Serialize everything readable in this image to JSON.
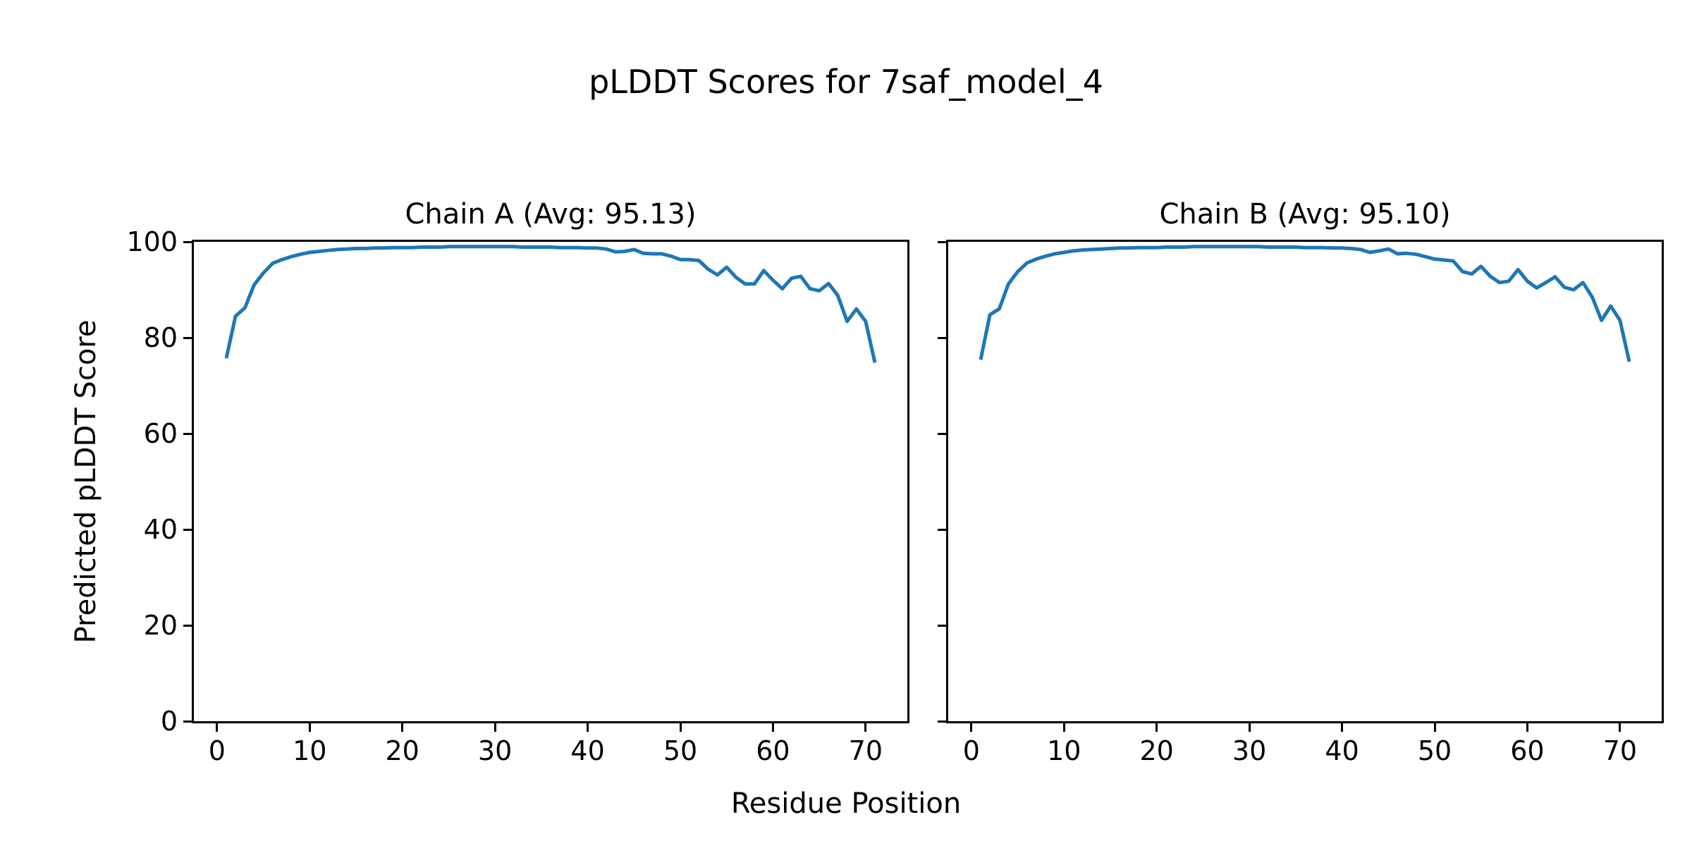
{
  "figure": {
    "suptitle": "pLDDT Scores for 7saf_model_4",
    "xlabel": "Residue Position",
    "ylabel": "Predicted pLDDT Score",
    "background_color": "#ffffff",
    "text_color": "#000000",
    "spine_color": "#000000"
  },
  "chart_data": {
    "type": "line",
    "line_color": "#1f77b4",
    "xlim": [
      -2.5,
      74.5
    ],
    "ylim": [
      0,
      100
    ],
    "x_ticks": [
      0,
      10,
      20,
      30,
      40,
      50,
      60,
      70
    ],
    "y_ticks": [
      0,
      20,
      40,
      60,
      80,
      100
    ],
    "grid": false,
    "legend": false,
    "xlabel": "Residue Position",
    "ylabel": "Predicted pLDDT Score",
    "x": [
      1,
      2,
      3,
      4,
      5,
      6,
      7,
      8,
      9,
      10,
      11,
      12,
      13,
      14,
      15,
      16,
      17,
      18,
      19,
      20,
      21,
      22,
      23,
      24,
      25,
      26,
      27,
      28,
      29,
      30,
      31,
      32,
      33,
      34,
      35,
      36,
      37,
      38,
      39,
      40,
      41,
      42,
      43,
      44,
      45,
      46,
      47,
      48,
      49,
      50,
      51,
      52,
      53,
      54,
      55,
      56,
      57,
      58,
      59,
      60,
      61,
      62,
      63,
      64,
      65,
      66,
      67,
      68,
      69,
      70,
      71
    ],
    "series": [
      {
        "name": "Chain A",
        "title": "Chain A (Avg: 95.13)",
        "avg": 95.13,
        "values": [
          75.7,
          84.5,
          86.2,
          91.0,
          93.5,
          95.5,
          96.3,
          96.9,
          97.4,
          97.8,
          98.0,
          98.2,
          98.4,
          98.5,
          98.6,
          98.6,
          98.7,
          98.7,
          98.8,
          98.8,
          98.8,
          98.9,
          98.9,
          98.9,
          99.0,
          99.0,
          99.0,
          99.0,
          99.0,
          99.0,
          99.0,
          99.0,
          98.9,
          98.9,
          98.9,
          98.9,
          98.8,
          98.8,
          98.8,
          98.7,
          98.7,
          98.5,
          97.9,
          98.0,
          98.4,
          97.6,
          97.5,
          97.5,
          97.0,
          96.3,
          96.3,
          96.1,
          94.3,
          93.1,
          94.7,
          92.6,
          91.2,
          91.2,
          94.0,
          92.0,
          90.2,
          92.4,
          92.8,
          90.2,
          89.8,
          91.3,
          88.8,
          83.4,
          86.0,
          83.4,
          74.8
        ]
      },
      {
        "name": "Chain B",
        "title": "Chain B (Avg: 95.10)",
        "avg": 95.1,
        "values": [
          75.4,
          84.8,
          86.0,
          91.2,
          93.8,
          95.6,
          96.4,
          97.0,
          97.5,
          97.8,
          98.1,
          98.3,
          98.4,
          98.5,
          98.6,
          98.7,
          98.7,
          98.8,
          98.8,
          98.8,
          98.9,
          98.9,
          98.9,
          99.0,
          99.0,
          99.0,
          99.0,
          99.0,
          99.0,
          99.0,
          99.0,
          98.9,
          98.9,
          98.9,
          98.9,
          98.8,
          98.8,
          98.8,
          98.7,
          98.7,
          98.6,
          98.4,
          97.8,
          98.1,
          98.5,
          97.5,
          97.6,
          97.4,
          96.9,
          96.4,
          96.2,
          96.0,
          93.8,
          93.3,
          94.9,
          92.8,
          91.5,
          91.8,
          94.2,
          91.8,
          90.4,
          91.5,
          92.7,
          90.5,
          90.0,
          91.5,
          88.5,
          83.6,
          86.6,
          83.6,
          75.0
        ]
      }
    ]
  }
}
